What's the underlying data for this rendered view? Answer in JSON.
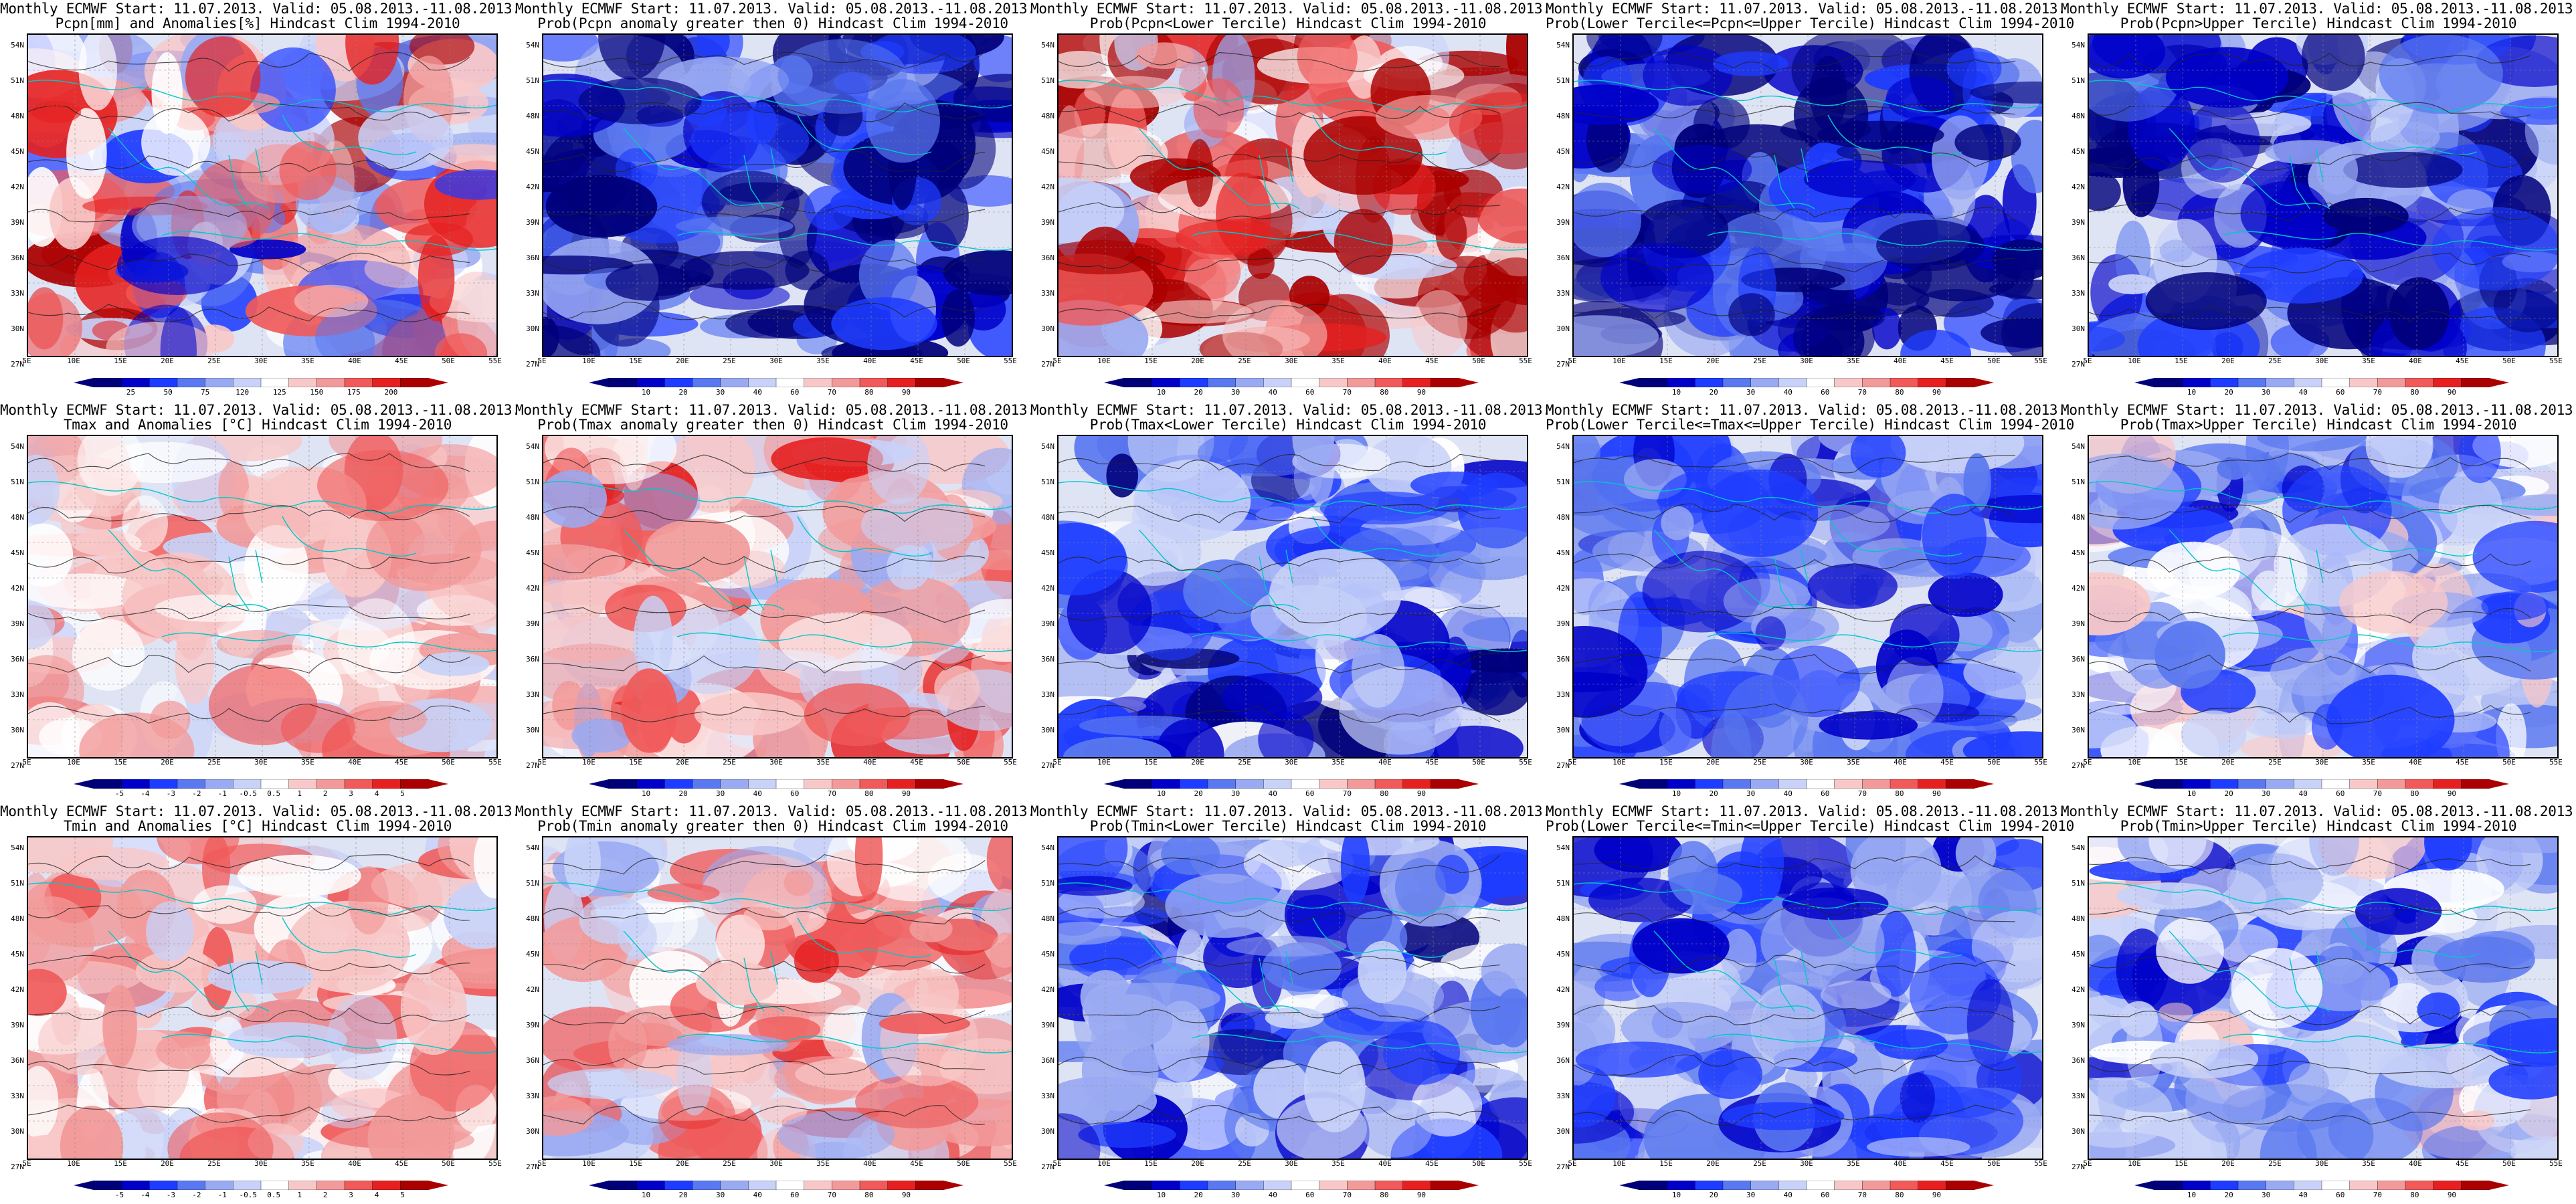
{
  "lat_ticks": [
    "54N",
    "51N",
    "48N",
    "45N",
    "42N",
    "39N",
    "36N",
    "33N",
    "30N",
    "27N"
  ],
  "lon_ticks": [
    "5E",
    "10E",
    "15E",
    "20E",
    "25E",
    "30E",
    "35E",
    "40E",
    "45E",
    "50E",
    "55E"
  ],
  "title_common": "Monthly ECMWF Start: 11.07.2013. Valid: 05.08.2013.-11.08.2013.",
  "colorbar_ticks": {
    "pcpn_anom": [
      "25",
      "50",
      "75",
      "120",
      "125",
      "150",
      "175",
      "200"
    ],
    "temp_anom": [
      "-5",
      "-4",
      "-3",
      "-2",
      "-1",
      "-0.5",
      "0.5",
      "1",
      "2",
      "3",
      "4",
      "5"
    ],
    "prob": [
      "10",
      "20",
      "30",
      "40",
      "60",
      "70",
      "80",
      "90"
    ]
  },
  "colors": {
    "scale": [
      "#00007a",
      "#0000c8",
      "#1e3cff",
      "#5a78f0",
      "#9aaaf2",
      "#c8d2f8",
      "#ffffff",
      "#f8c8c8",
      "#f29a9a",
      "#f05a5a",
      "#e62020",
      "#aa0000"
    ],
    "contour": "#222222",
    "coast": "#00c8c8"
  },
  "panels": [
    {
      "row": 0,
      "col": 0,
      "title1": "Monthly ECMWF Start: 11.07.2013. Valid: 05.08.2013.-11.08.2013.",
      "title2": "Pcpn[mm] and Anomalies[%] Hindcast Clim 1994-2010",
      "bar": "pcpn_anom"
    },
    {
      "row": 0,
      "col": 1,
      "title1": "Monthly ECMWF Start: 11.07.2013. Valid: 05.08.2013.-11.08.2013.",
      "title2": "Prob(Pcpn anomaly greater then 0) Hindcast Clim 1994-2010",
      "bar": "prob"
    },
    {
      "row": 0,
      "col": 2,
      "title1": "Monthly ECMWF Start: 11.07.2013. Valid: 05.08.2013.-11.08.2013.",
      "title2": "Prob(Pcpn<Lower Tercile) Hindcast Clim 1994-2010",
      "bar": "prob"
    },
    {
      "row": 0,
      "col": 3,
      "title1": "Monthly ECMWF Start: 11.07.2013. Valid: 05.08.2013.-11.08.2013.",
      "title2": "Prob(Lower Tercile<=Pcpn<=Upper Tercile) Hindcast Clim 1994-2010",
      "bar": "prob"
    },
    {
      "row": 0,
      "col": 4,
      "title1": "Monthly ECMWF Start: 11.07.2013. Valid: 05.08.2013.-11.08.2013.",
      "title2": "Prob(Pcpn>Upper Tercile) Hindcast Clim 1994-2010",
      "bar": "prob"
    },
    {
      "row": 1,
      "col": 0,
      "title1": "Monthly ECMWF Start: 11.07.2013. Valid: 05.08.2013.-11.08.2013.",
      "title2": "Tmax and Anomalies [°C] Hindcast Clim 1994-2010",
      "bar": "temp_anom"
    },
    {
      "row": 1,
      "col": 1,
      "title1": "Monthly ECMWF Start: 11.07.2013. Valid: 05.08.2013.-11.08.2013.",
      "title2": "Prob(Tmax anomaly greater then 0) Hindcast Clim 1994-2010",
      "bar": "prob"
    },
    {
      "row": 1,
      "col": 2,
      "title1": "Monthly ECMWF Start: 11.07.2013. Valid: 05.08.2013.-11.08.2013.",
      "title2": "Prob(Tmax<Lower Tercile) Hindcast Clim 1994-2010",
      "bar": "prob"
    },
    {
      "row": 1,
      "col": 3,
      "title1": "Monthly ECMWF Start: 11.07.2013. Valid: 05.08.2013.-11.08.2013.",
      "title2": "Prob(Lower Tercile<=Tmax<=Upper Tercile) Hindcast Clim 1994-2010",
      "bar": "prob"
    },
    {
      "row": 1,
      "col": 4,
      "title1": "Monthly ECMWF Start: 11.07.2013. Valid: 05.08.2013.-11.08.2013.",
      "title2": "Prob(Tmax>Upper Tercile) Hindcast Clim 1994-2010",
      "bar": "prob"
    },
    {
      "row": 2,
      "col": 0,
      "title1": "Monthly ECMWF Start: 11.07.2013. Valid: 05.08.2013.-11.08.2013.",
      "title2": "Tmin and Anomalies [°C] Hindcast Clim 1994-2010",
      "bar": "temp_anom"
    },
    {
      "row": 2,
      "col": 1,
      "title1": "Monthly ECMWF Start: 11.07.2013. Valid: 05.08.2013.-11.08.2013.",
      "title2": "Prob(Tmin anomaly greater then 0) Hindcast Clim 1994-2010",
      "bar": "prob"
    },
    {
      "row": 2,
      "col": 2,
      "title1": "Monthly ECMWF Start: 11.07.2013. Valid: 05.08.2013.-11.08.2013.",
      "title2": "Prob(Tmin<Lower Tercile) Hindcast Clim 1994-2010",
      "bar": "prob"
    },
    {
      "row": 2,
      "col": 3,
      "title1": "Monthly ECMWF Start: 11.07.2013. Valid: 05.08.2013.-11.08.2013.",
      "title2": "Prob(Lower Tercile<=Tmin<=Upper Tercile) Hindcast Clim 1994-2010",
      "bar": "prob"
    },
    {
      "row": 2,
      "col": 4,
      "title1": "Monthly ECMWF Start: 11.07.2013. Valid: 05.08.2013.-11.08.2013.",
      "title2": "Prob(Tmin>Upper Tercile) Hindcast Clim 1994-2010",
      "bar": "prob"
    }
  ]
}
